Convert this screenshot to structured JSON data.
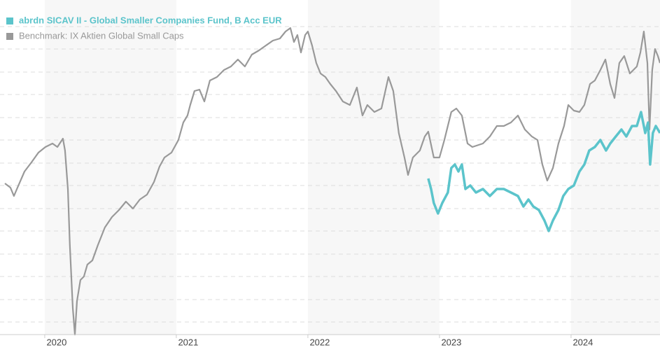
{
  "chart_data": {
    "type": "line",
    "xlim": [
      2019.66,
      2024.676
    ],
    "xticks": [
      2020,
      2021,
      2022,
      2023,
      2024
    ],
    "ylim": [
      0,
      478
    ],
    "yticks": [
      18,
      50,
      83,
      115,
      148,
      180,
      213,
      245,
      278,
      310,
      343,
      375,
      408,
      440
    ],
    "grid": true,
    "legend": "top-left",
    "series": [
      {
        "name": "abrdn SICAV II - Global Smaller Companies Fund, B Acc EUR",
        "color": "#5bc4cb",
        "x": [
          2022.915,
          2022.936,
          2022.957,
          2022.989,
          2023.021,
          2023.064,
          2023.09,
          2023.117,
          2023.144,
          2023.17,
          2023.197,
          2023.234,
          2023.277,
          2023.33,
          2023.383,
          2023.436,
          2023.489,
          2023.543,
          2023.596,
          2023.638,
          2023.676,
          2023.713,
          2023.755,
          2023.798,
          2023.83,
          2023.862,
          2023.904,
          2023.941,
          2023.979,
          2024.021,
          2024.064,
          2024.101,
          2024.138,
          2024.181,
          2024.223,
          2024.266,
          2024.298,
          2024.34,
          2024.383,
          2024.42,
          2024.463,
          2024.5,
          2024.532,
          2024.564,
          2024.585,
          2024.601,
          2024.622,
          2024.644,
          2024.676
        ],
        "values": [
          223,
          208,
          188,
          173,
          188,
          203,
          238,
          243,
          233,
          243,
          208,
          213,
          203,
          208,
          198,
          208,
          208,
          203,
          198,
          183,
          193,
          183,
          178,
          163,
          148,
          163,
          178,
          198,
          208,
          213,
          233,
          243,
          263,
          268,
          278,
          263,
          273,
          283,
          293,
          283,
          298,
          298,
          318,
          288,
          303,
          243,
          288,
          298,
          288
        ]
      },
      {
        "name": "Benchmark: IX Aktien Global Small Caps",
        "color": "#999999",
        "x": [
          2019.697,
          2019.739,
          2019.766,
          2019.793,
          2019.846,
          2019.899,
          2019.952,
          2020.005,
          2020.059,
          2020.096,
          2020.138,
          2020.154,
          2020.176,
          2020.191,
          2020.213,
          2020.229,
          2020.245,
          2020.271,
          2020.298,
          2020.324,
          2020.362,
          2020.404,
          2020.457,
          2020.511,
          2020.564,
          2020.617,
          2020.67,
          2020.723,
          2020.777,
          2020.83,
          2020.872,
          2020.91,
          2020.963,
          2021.016,
          2021.053,
          2021.085,
          2021.106,
          2021.138,
          2021.176,
          2021.213,
          2021.255,
          2021.309,
          2021.362,
          2021.415,
          2021.468,
          2021.521,
          2021.574,
          2021.628,
          2021.681,
          2021.734,
          2021.787,
          2021.83,
          2021.867,
          2021.894,
          2021.92,
          2021.947,
          2021.979,
          2022.0,
          2022.032,
          2022.064,
          2022.096,
          2022.133,
          2022.17,
          2022.213,
          2022.266,
          2022.319,
          2022.372,
          2022.415,
          2022.452,
          2022.505,
          2022.559,
          2022.612,
          2022.649,
          2022.691,
          2022.734,
          2022.761,
          2022.798,
          2022.851,
          2022.888,
          2022.915,
          2022.957,
          2023.0,
          2023.037,
          2023.09,
          2023.128,
          2023.17,
          2023.213,
          2023.25,
          2023.33,
          2023.383,
          2023.436,
          2023.489,
          2023.543,
          2023.596,
          2023.649,
          2023.702,
          2023.745,
          2023.782,
          2023.819,
          2023.862,
          2023.904,
          2023.947,
          2023.979,
          2024.021,
          2024.064,
          2024.101,
          2024.144,
          2024.181,
          2024.223,
          2024.261,
          2024.298,
          2024.33,
          2024.367,
          2024.404,
          2024.447,
          2024.5,
          2024.527,
          2024.553,
          2024.58,
          2024.596,
          2024.617,
          2024.638,
          2024.66,
          2024.676
        ],
        "values": [
          216,
          210,
          198,
          210,
          233,
          246,
          260,
          268,
          273,
          268,
          280,
          263,
          208,
          128,
          38,
          0,
          48,
          78,
          83,
          100,
          106,
          128,
          153,
          168,
          178,
          190,
          180,
          193,
          200,
          218,
          240,
          253,
          260,
          278,
          303,
          313,
          328,
          348,
          350,
          333,
          363,
          368,
          378,
          383,
          393,
          383,
          400,
          406,
          413,
          420,
          423,
          433,
          438,
          418,
          428,
          403,
          428,
          433,
          413,
          388,
          373,
          368,
          358,
          348,
          333,
          328,
          353,
          313,
          328,
          318,
          323,
          368,
          348,
          288,
          253,
          228,
          253,
          263,
          283,
          290,
          253,
          253,
          278,
          318,
          323,
          313,
          273,
          268,
          273,
          283,
          298,
          298,
          303,
          313,
          293,
          283,
          278,
          243,
          220,
          238,
          273,
          298,
          328,
          320,
          318,
          328,
          358,
          363,
          378,
          393,
          358,
          338,
          388,
          398,
          373,
          383,
          403,
          433,
          388,
          293,
          378,
          408,
          398,
          388
        ]
      }
    ]
  }
}
